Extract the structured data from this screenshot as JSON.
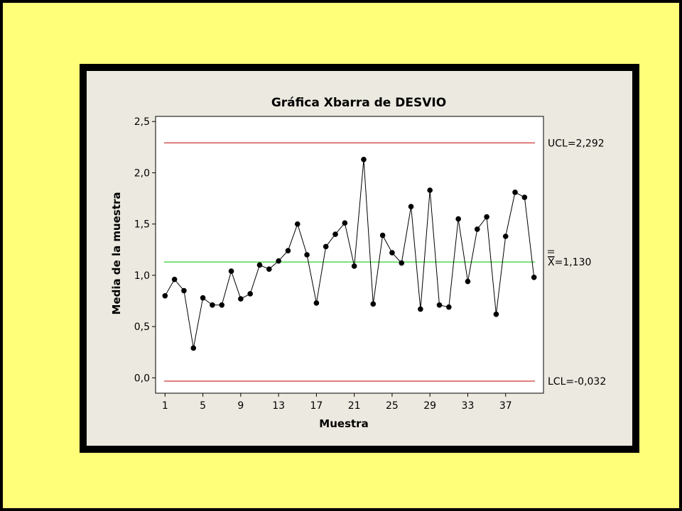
{
  "colors": {
    "slide_background": "#ffff7a",
    "frame": "#000000",
    "panel": "#ece9e0",
    "plot_area": "#ffffff",
    "control_limit": "#c00000",
    "center_line": "#00c000",
    "series_line": "#000000",
    "marker": "#000000"
  },
  "chart_data": {
    "type": "line",
    "title": "Gráfica Xbarra de DESVIO",
    "xlabel": "Muestra",
    "ylabel": "Media de la muestra",
    "xlim": [
      0,
      41
    ],
    "ylim": [
      -0.15,
      2.55
    ],
    "x_ticks": [
      1,
      5,
      9,
      13,
      17,
      21,
      25,
      29,
      33,
      37
    ],
    "x_tick_labels": [
      "1",
      "5",
      "9",
      "13",
      "17",
      "21",
      "25",
      "29",
      "33",
      "37"
    ],
    "y_ticks": [
      0.0,
      0.5,
      1.0,
      1.5,
      2.0,
      2.5
    ],
    "y_tick_labels": [
      "0,0",
      "0,5",
      "1,0",
      "1,5",
      "2,0",
      "2,5"
    ],
    "grid": false,
    "x": [
      1,
      2,
      3,
      4,
      5,
      6,
      7,
      8,
      9,
      10,
      11,
      12,
      13,
      14,
      15,
      16,
      17,
      18,
      19,
      20,
      21,
      22,
      23,
      24,
      25,
      26,
      27,
      28,
      29,
      30,
      31,
      32,
      33,
      34,
      35,
      36,
      37,
      38,
      39,
      40
    ],
    "values": [
      0.8,
      0.96,
      0.85,
      0.29,
      0.78,
      0.71,
      0.71,
      1.04,
      0.77,
      0.82,
      1.1,
      1.06,
      1.14,
      1.24,
      1.5,
      1.2,
      0.73,
      1.28,
      1.4,
      1.51,
      1.09,
      2.13,
      0.72,
      1.39,
      1.22,
      1.12,
      1.67,
      0.67,
      1.83,
      0.71,
      0.69,
      1.55,
      0.94,
      1.45,
      1.57,
      0.62,
      1.38,
      1.81,
      1.76,
      0.98
    ],
    "reference_lines": [
      {
        "name": "UCL",
        "value": 2.292,
        "label": "UCL=2,292",
        "color": "#c00000"
      },
      {
        "name": "CL",
        "value": 1.13,
        "label_symbol": "X",
        "label_rest": "=1,130",
        "color": "#00c000"
      },
      {
        "name": "LCL",
        "value": -0.032,
        "label": "LCL=-0,032",
        "color": "#c00000"
      }
    ]
  }
}
